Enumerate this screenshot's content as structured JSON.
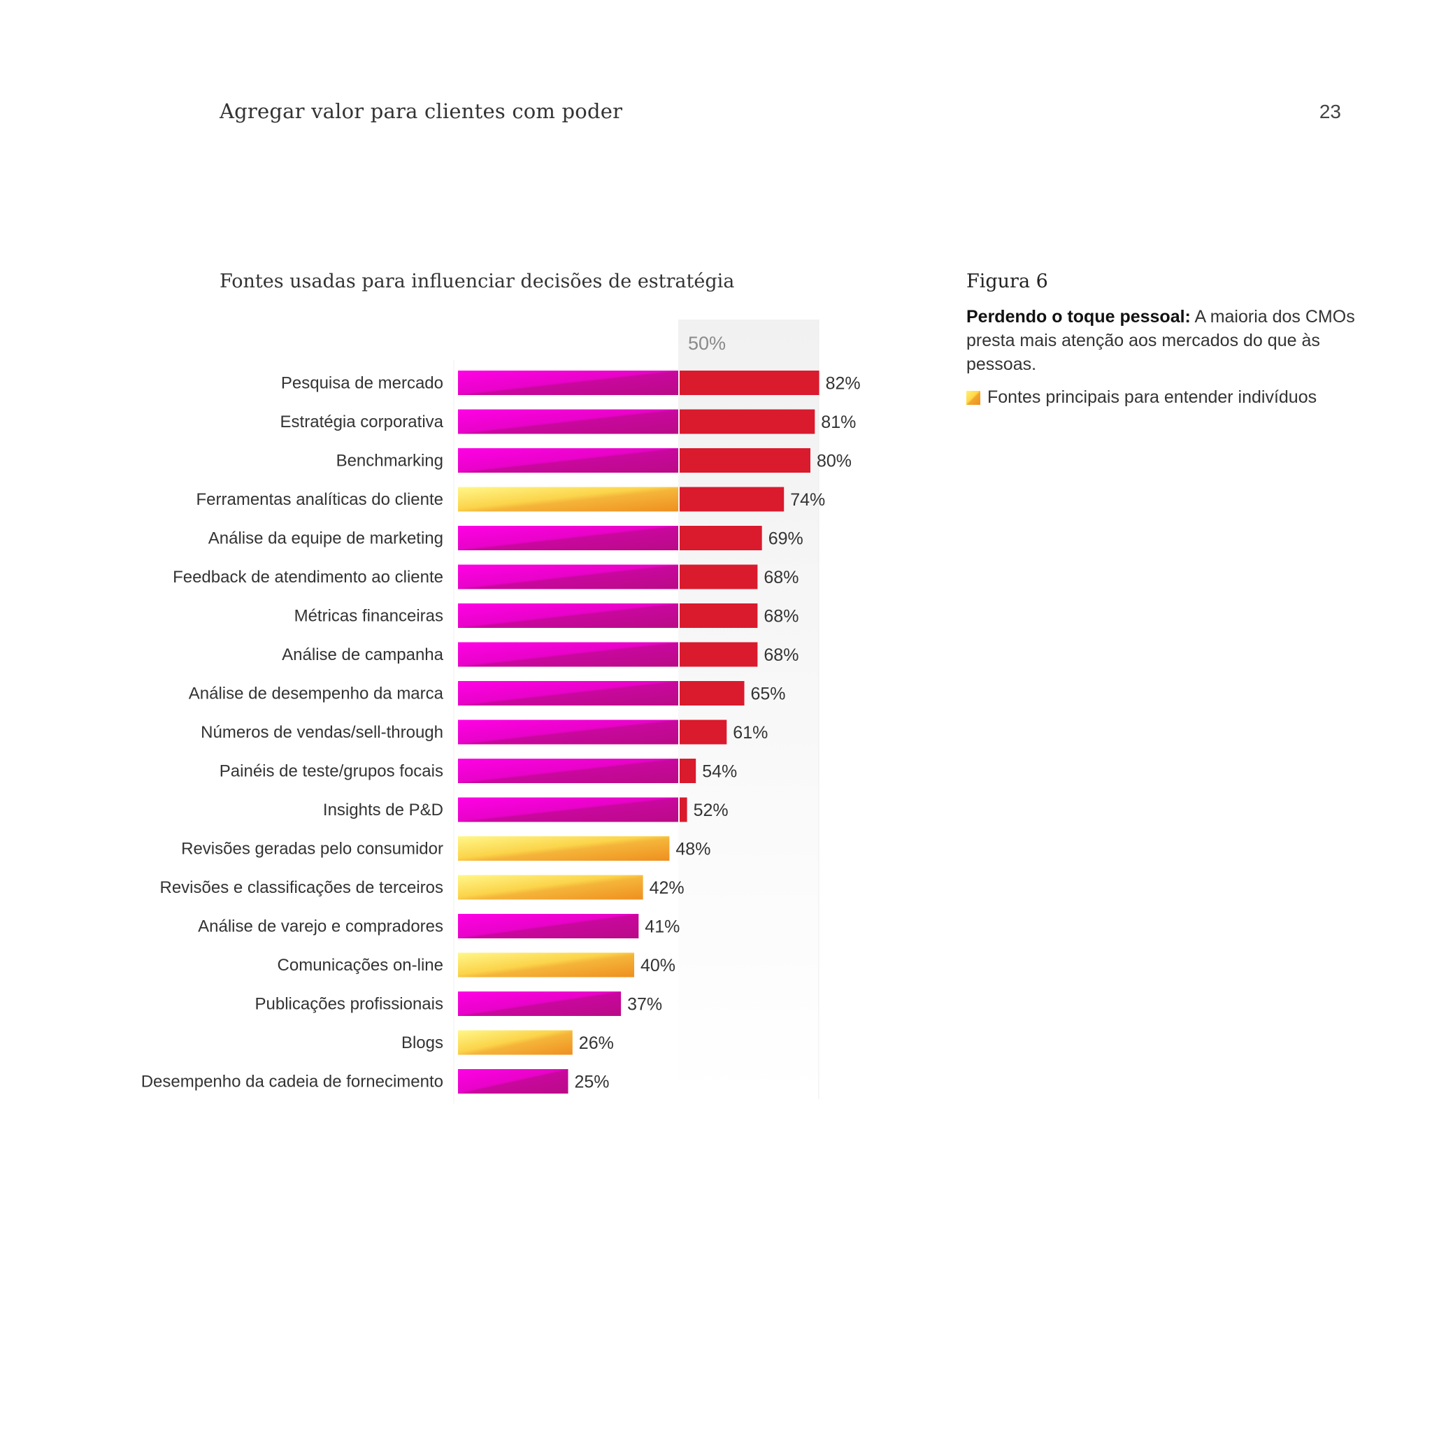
{
  "header": {
    "running_title": "Agregar valor para clientes com poder",
    "page_number": "23"
  },
  "figure": {
    "number": "Figura 6",
    "caption_bold": "Perdendo o toque pessoal:",
    "caption_text": "A maioria dos CMOs presta mais atenção aos mercados do que às pessoas.",
    "legend_label": "Fontes principais para entender indivíduos"
  },
  "colors": {
    "magenta": "#ff00e6",
    "purple": "#b90b86",
    "red": "#da1a2d",
    "yellow_light": "#fff78a",
    "orange": "#ee8f1f",
    "ref_panel": "#f1f1f1"
  },
  "chart_data": {
    "type": "bar",
    "orientation": "horizontal",
    "title": "Fontes usadas para influenciar decisões de estratégia",
    "reference_line": {
      "value": 50,
      "label": "50%"
    },
    "xlim": [
      0,
      100
    ],
    "xlabel": "",
    "ylabel": "",
    "categories": [
      "Pesquisa de mercado",
      "Estratégia corporativa",
      "Benchmarking",
      "Ferramentas analíticas do cliente",
      "Análise da equipe de marketing",
      "Feedback de atendimento ao cliente",
      "Métricas financeiras",
      "Análise de campanha",
      "Análise de desempenho da marca",
      "Números de vendas/sell-through",
      "Painéis de teste/grupos focais",
      "Insights de P&D",
      "Revisões geradas pelo consumidor",
      "Revisões e classificações de terceiros",
      "Análise de varejo e compradores",
      "Comunicações on-line",
      "Publicações profissionais",
      "Blogs",
      "Desempenho da cadeia de fornecimento"
    ],
    "values": [
      82,
      81,
      80,
      74,
      69,
      68,
      68,
      68,
      65,
      61,
      54,
      52,
      48,
      42,
      41,
      40,
      37,
      26,
      25
    ],
    "value_labels": [
      "82%",
      "81%",
      "80%",
      "74%",
      "69%",
      "68%",
      "68%",
      "68%",
      "65%",
      "61%",
      "54%",
      "52%",
      "48%",
      "42%",
      "41%",
      "40%",
      "37%",
      "26%",
      "25%"
    ],
    "individual_focus": [
      false,
      false,
      false,
      true,
      false,
      false,
      false,
      false,
      false,
      false,
      false,
      false,
      true,
      true,
      false,
      true,
      false,
      true,
      false
    ]
  }
}
